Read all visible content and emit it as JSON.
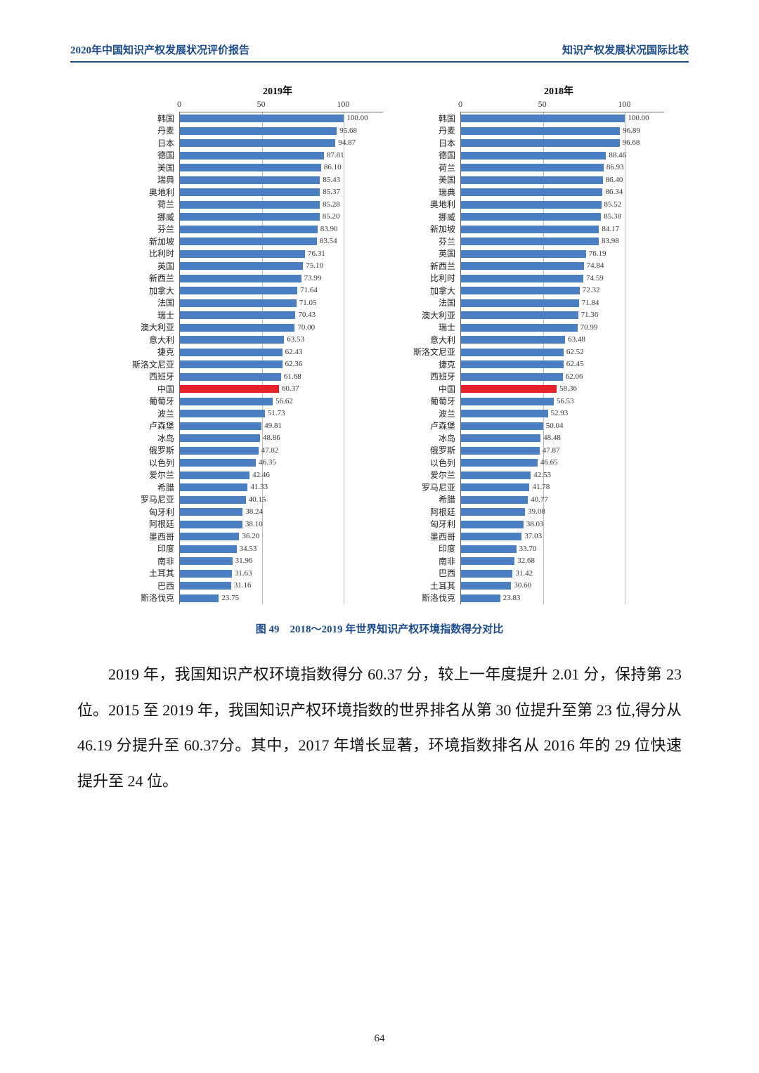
{
  "header": {
    "left": "2020年中国知识产权发展状况评价报告",
    "right": "知识产权发展状况国际比较"
  },
  "chart_common": {
    "xmin": 0,
    "xmax": 120,
    "ticks": [
      0,
      50,
      100
    ],
    "bar_color": "#4a7fc4",
    "highlight_color": "#e62128",
    "highlight_country": "中国",
    "grid_color": "#bbbbbb",
    "text_color": "#222222"
  },
  "chart2019": {
    "title": "2019年",
    "data": [
      {
        "c": "韩国",
        "v": 100.0
      },
      {
        "c": "丹麦",
        "v": 95.68
      },
      {
        "c": "日本",
        "v": 94.87
      },
      {
        "c": "德国",
        "v": 87.81
      },
      {
        "c": "美国",
        "v": 86.1
      },
      {
        "c": "瑞典",
        "v": 85.43
      },
      {
        "c": "奥地利",
        "v": 85.37
      },
      {
        "c": "荷兰",
        "v": 85.28
      },
      {
        "c": "挪威",
        "v": 85.2
      },
      {
        "c": "芬兰",
        "v": 83.9
      },
      {
        "c": "新加坡",
        "v": 83.54
      },
      {
        "c": "比利时",
        "v": 76.31
      },
      {
        "c": "英国",
        "v": 75.1
      },
      {
        "c": "新西兰",
        "v": 73.99
      },
      {
        "c": "加拿大",
        "v": 71.64
      },
      {
        "c": "法国",
        "v": 71.05
      },
      {
        "c": "瑞士",
        "v": 70.43
      },
      {
        "c": "澳大利亚",
        "v": 70.0
      },
      {
        "c": "意大利",
        "v": 63.53
      },
      {
        "c": "捷克",
        "v": 62.43
      },
      {
        "c": "斯洛文尼亚",
        "v": 62.36
      },
      {
        "c": "西班牙",
        "v": 61.68
      },
      {
        "c": "中国",
        "v": 60.37
      },
      {
        "c": "葡萄牙",
        "v": 56.62
      },
      {
        "c": "波兰",
        "v": 51.73
      },
      {
        "c": "卢森堡",
        "v": 49.81
      },
      {
        "c": "冰岛",
        "v": 48.86
      },
      {
        "c": "俄罗斯",
        "v": 47.82
      },
      {
        "c": "以色列",
        "v": 46.35
      },
      {
        "c": "爱尔兰",
        "v": 42.46
      },
      {
        "c": "希腊",
        "v": 41.33
      },
      {
        "c": "罗马尼亚",
        "v": 40.15
      },
      {
        "c": "匈牙利",
        "v": 38.24
      },
      {
        "c": "阿根廷",
        "v": 38.1
      },
      {
        "c": "墨西哥",
        "v": 36.2
      },
      {
        "c": "印度",
        "v": 34.53
      },
      {
        "c": "南非",
        "v": 31.96
      },
      {
        "c": "土耳其",
        "v": 31.63
      },
      {
        "c": "巴西",
        "v": 31.16
      },
      {
        "c": "斯洛伐克",
        "v": 23.75
      }
    ]
  },
  "chart2018": {
    "title": "2018年",
    "data": [
      {
        "c": "韩国",
        "v": 100.0
      },
      {
        "c": "丹麦",
        "v": 96.89
      },
      {
        "c": "日本",
        "v": 96.68
      },
      {
        "c": "德国",
        "v": 88.46
      },
      {
        "c": "荷兰",
        "v": 86.93
      },
      {
        "c": "美国",
        "v": 86.4
      },
      {
        "c": "瑞典",
        "v": 86.34
      },
      {
        "c": "奥地利",
        "v": 85.52
      },
      {
        "c": "挪威",
        "v": 85.38
      },
      {
        "c": "新加坡",
        "v": 84.17
      },
      {
        "c": "芬兰",
        "v": 83.98
      },
      {
        "c": "英国",
        "v": 76.19
      },
      {
        "c": "新西兰",
        "v": 74.84
      },
      {
        "c": "比利时",
        "v": 74.59
      },
      {
        "c": "加拿大",
        "v": 72.32
      },
      {
        "c": "法国",
        "v": 71.84
      },
      {
        "c": "澳大利亚",
        "v": 71.36
      },
      {
        "c": "瑞士",
        "v": 70.99
      },
      {
        "c": "意大利",
        "v": 63.48
      },
      {
        "c": "斯洛文尼亚",
        "v": 62.52
      },
      {
        "c": "捷克",
        "v": 62.45
      },
      {
        "c": "西班牙",
        "v": 62.06
      },
      {
        "c": "中国",
        "v": 58.36
      },
      {
        "c": "葡萄牙",
        "v": 56.53
      },
      {
        "c": "波兰",
        "v": 52.93
      },
      {
        "c": "卢森堡",
        "v": 50.04
      },
      {
        "c": "冰岛",
        "v": 48.48
      },
      {
        "c": "俄罗斯",
        "v": 47.87
      },
      {
        "c": "以色列",
        "v": 46.65
      },
      {
        "c": "爱尔兰",
        "v": 42.53
      },
      {
        "c": "罗马尼亚",
        "v": 41.78
      },
      {
        "c": "希腊",
        "v": 40.77
      },
      {
        "c": "阿根廷",
        "v": 39.08
      },
      {
        "c": "匈牙利",
        "v": 38.03
      },
      {
        "c": "墨西哥",
        "v": 37.03
      },
      {
        "c": "印度",
        "v": 33.7
      },
      {
        "c": "南非",
        "v": 32.68
      },
      {
        "c": "巴西",
        "v": 31.42
      },
      {
        "c": "土耳其",
        "v": 30.6
      },
      {
        "c": "斯洛伐克",
        "v": 23.83
      }
    ]
  },
  "caption": "图 49　2018～2019 年世界知识产权环境指数得分对比",
  "body": "2019 年，我国知识产权环境指数得分 60.37 分，较上一年度提升 2.01 分，保持第 23 位。2015 至 2019 年，我国知识产权环境指数的世界排名从第 30 位提升至第 23 位,得分从 46.19 分提升至 60.37分。其中，2017 年增长显著，环境指数排名从 2016 年的 29 位快速提升至 24 位。",
  "page": "64"
}
